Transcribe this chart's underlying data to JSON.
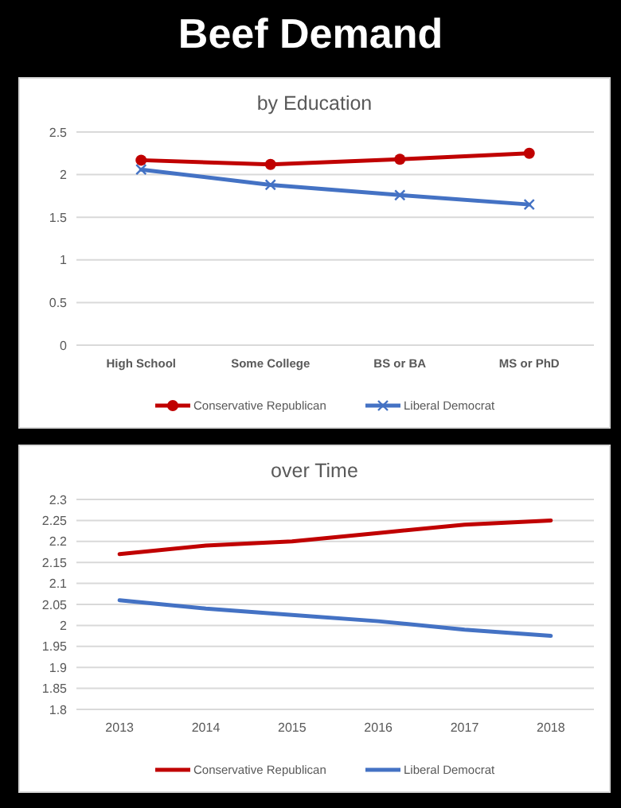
{
  "chart_data": [
    {
      "type": "line",
      "title": "Beef Demand",
      "subtitle": "by Education",
      "categories": [
        "High School",
        "Some College",
        "BS or BA",
        "MS or PhD"
      ],
      "ylim": [
        0,
        2.5
      ],
      "yticks": [
        0,
        0.5,
        1,
        1.5,
        2,
        2.5
      ],
      "grid": "y",
      "legend": "bottom",
      "series": [
        {
          "name": "Conservative Republican",
          "color": "#c00000",
          "marker": "circle",
          "values": [
            2.17,
            2.12,
            2.18,
            2.25
          ]
        },
        {
          "name": "Liberal Democrat",
          "color": "#4472c4",
          "marker": "cross",
          "values": [
            2.06,
            1.88,
            1.76,
            1.65
          ]
        }
      ]
    },
    {
      "type": "line",
      "title": "over Time",
      "categories": [
        "2013",
        "2014",
        "2015",
        "2016",
        "2017",
        "2018"
      ],
      "ylim": [
        1.8,
        2.3
      ],
      "yticks": [
        1.8,
        1.85,
        1.9,
        1.95,
        2,
        2.05,
        2.1,
        2.15,
        2.2,
        2.25,
        2.3
      ],
      "grid": "y",
      "legend": "bottom",
      "series": [
        {
          "name": "Conservative Republican",
          "color": "#c00000",
          "values": [
            2.17,
            2.19,
            2.2,
            2.22,
            2.24,
            2.25
          ]
        },
        {
          "name": "Liberal Democrat",
          "color": "#4472c4",
          "values": [
            2.06,
            2.04,
            2.025,
            2.01,
            1.99,
            1.975
          ]
        }
      ]
    }
  ]
}
